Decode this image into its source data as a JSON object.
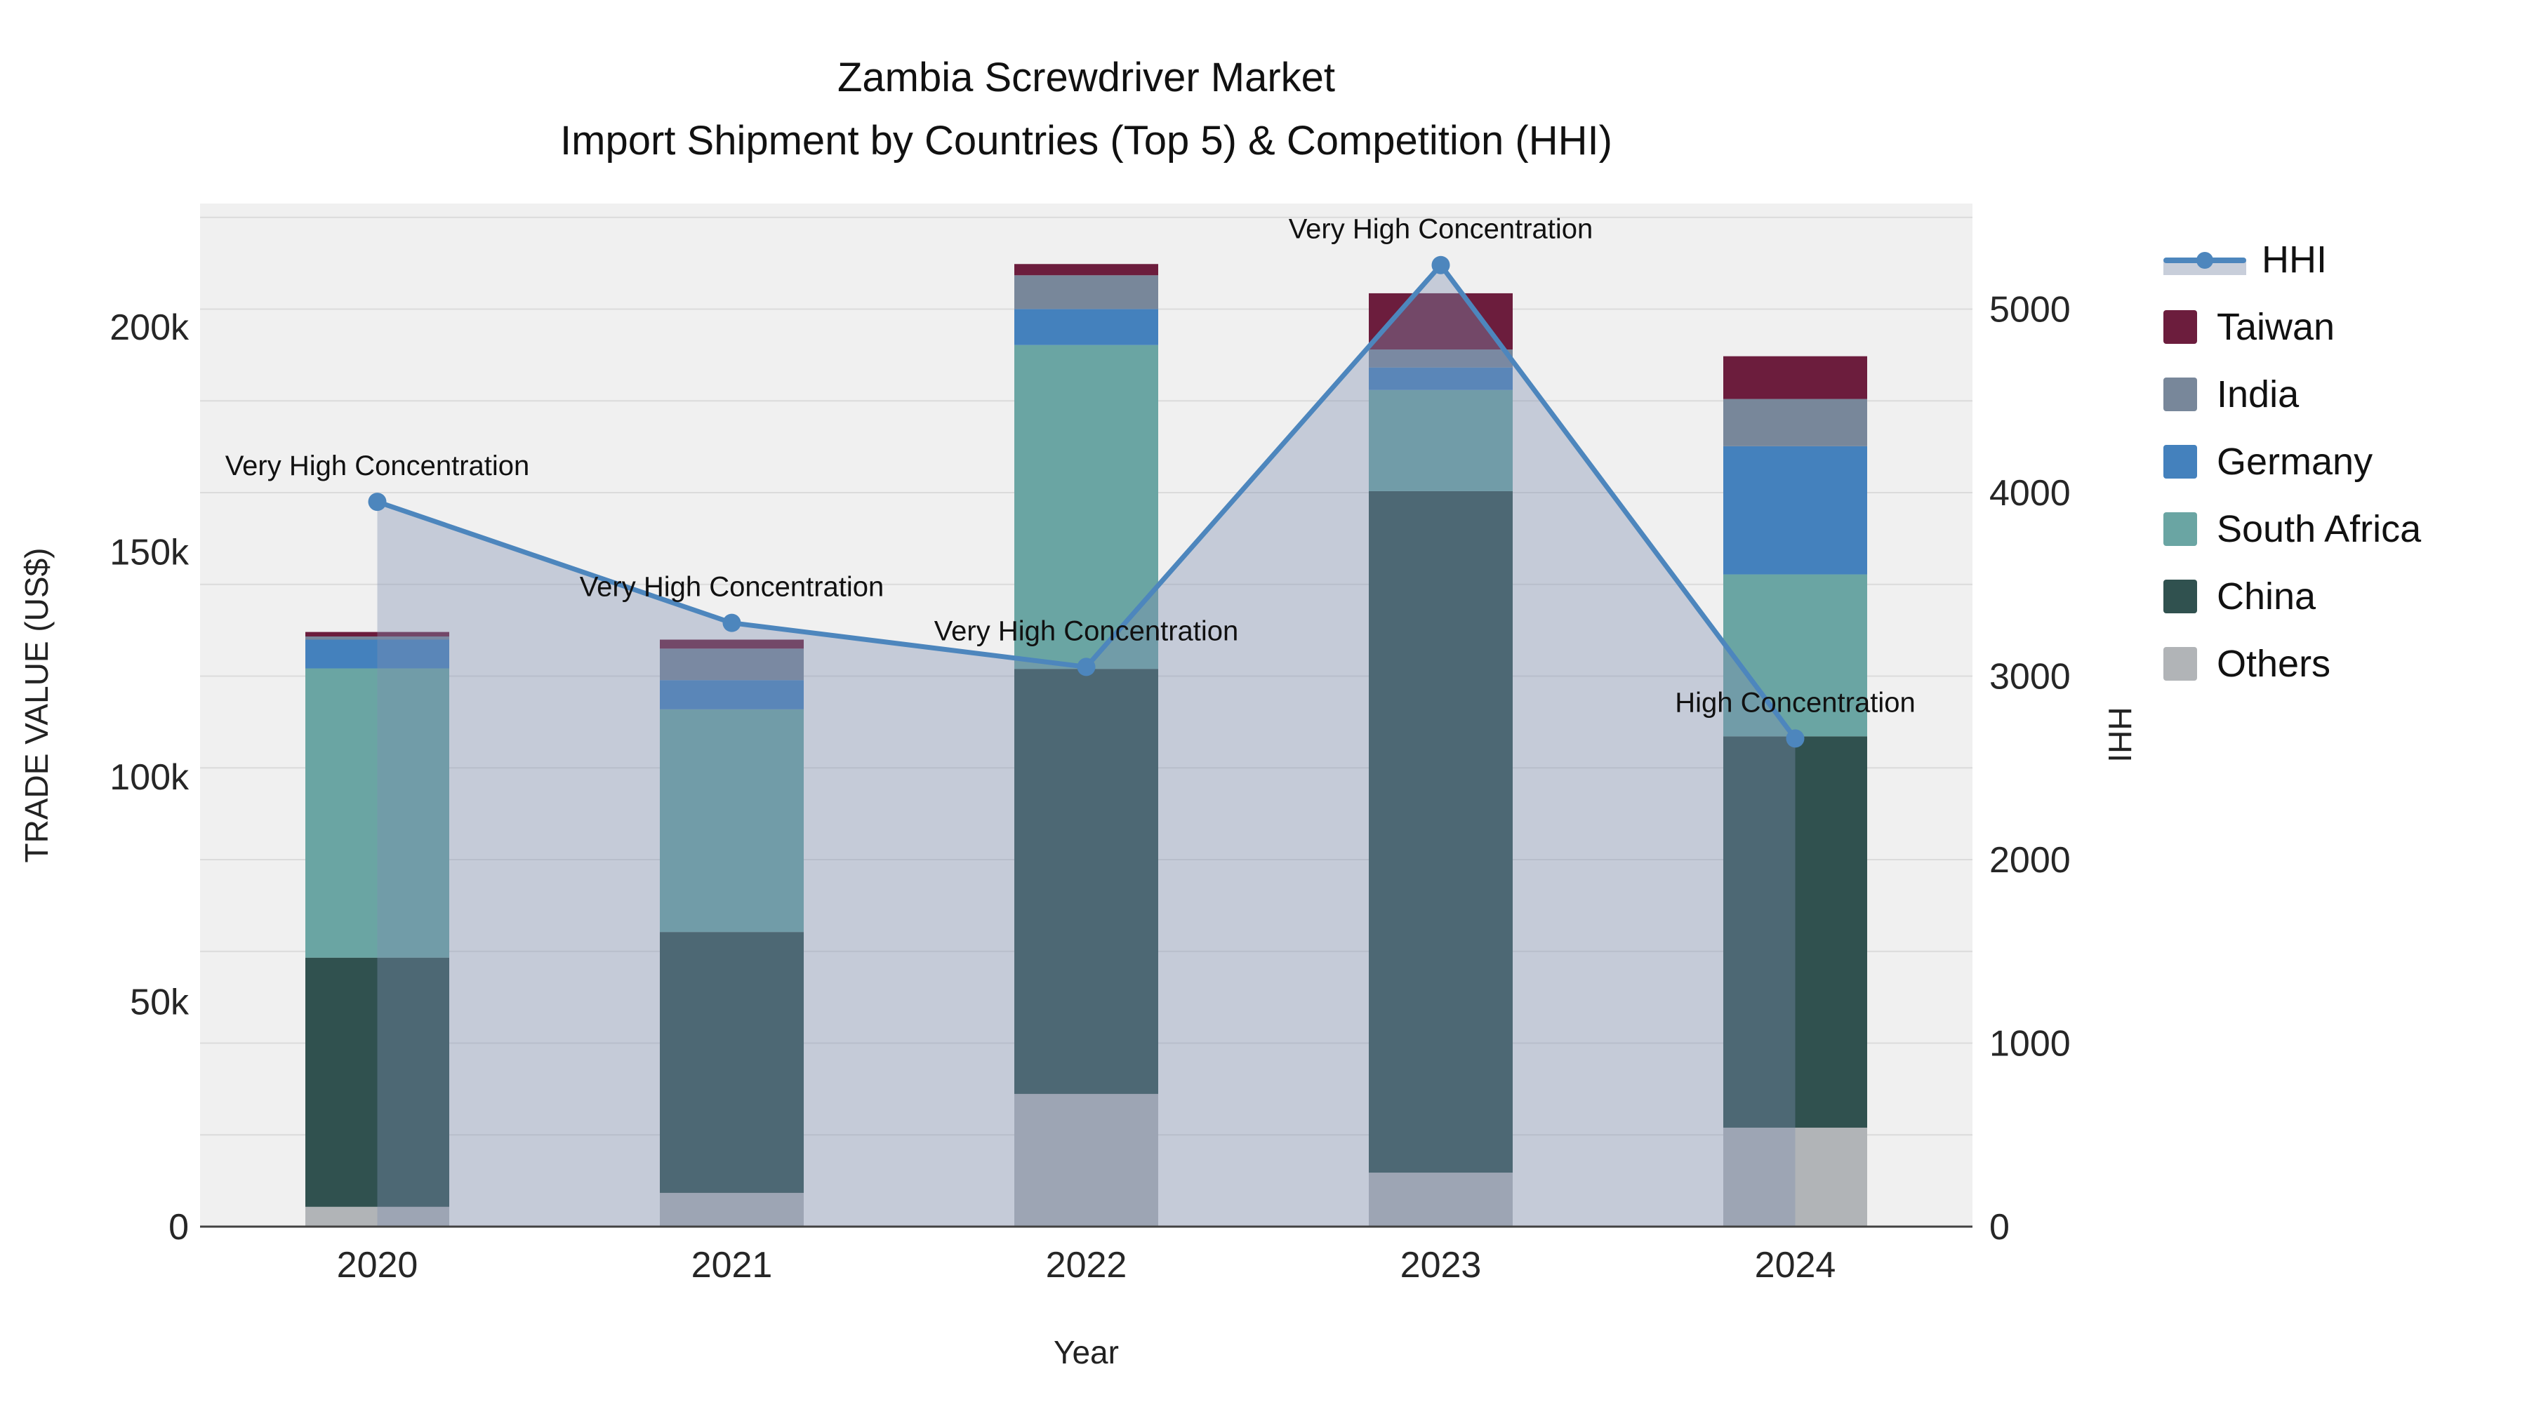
{
  "chart_data": {
    "type": "bar",
    "combo": "stacked-bars-with-line-overlay-and-area-fill",
    "title": "Zambia Screwdriver Market",
    "subtitle": "Import Shipment by Countries (Top 5) & Competition (HHI)",
    "xlabel": "Year",
    "ylabel_left": "TRADE VALUE (US$)",
    "ylabel_right": "HHI",
    "categories": [
      "2020",
      "2021",
      "2022",
      "2023",
      "2024"
    ],
    "stack_order_bottom_to_top": [
      "Others",
      "China",
      "South Africa",
      "Germany",
      "India",
      "Taiwan"
    ],
    "series": [
      {
        "name": "Taiwan",
        "color": "#6c1d3d",
        "values_kusd": [
          1.0,
          2.0,
          2.5,
          12.5,
          9.5
        ]
      },
      {
        "name": "India",
        "color": "#78879a",
        "values_kusd": [
          0.7,
          7.0,
          7.5,
          4.0,
          10.5
        ]
      },
      {
        "name": "Germany",
        "color": "#4481bd",
        "values_kusd": [
          6.4,
          6.5,
          8.0,
          5.0,
          28.5
        ]
      },
      {
        "name": "South Africa",
        "color": "#6aa5a3",
        "values_kusd": [
          64.3,
          49.5,
          72.0,
          22.5,
          36.0
        ]
      },
      {
        "name": "China",
        "color": "#30514f",
        "values_kusd": [
          55.4,
          58.0,
          94.5,
          151.5,
          87.0
        ]
      },
      {
        "name": "Others",
        "color": "#b1b4b7",
        "values_kusd": [
          4.4,
          7.5,
          29.5,
          12.0,
          22.0
        ]
      }
    ],
    "bar_totals_kusd": [
      132.2,
      130.5,
      214.0,
      207.5,
      193.5
    ],
    "hhi_line": {
      "name": "HHI",
      "color": "#4d86bd",
      "area_fill": "rgba(126,143,177,0.38)",
      "values": [
        3950,
        3290,
        3050,
        5240,
        2660
      ]
    },
    "annotations": [
      {
        "category_index": 0,
        "text": "Very High Concentration"
      },
      {
        "category_index": 1,
        "text": "Very High Concentration"
      },
      {
        "category_index": 2,
        "text": "Very High Concentration"
      },
      {
        "category_index": 3,
        "text": "Very High Concentration"
      },
      {
        "category_index": 4,
        "text": "High Concentration"
      }
    ],
    "y_left_axis": {
      "tick_labels": [
        "0",
        "50k",
        "100k",
        "150k",
        "200k"
      ],
      "tick_values_kusd": [
        0,
        50,
        100,
        150,
        200
      ],
      "range_kusd": [
        0,
        227.4
      ]
    },
    "y_right_axis": {
      "tick_labels": [
        "0",
        "1000",
        "2000",
        "3000",
        "4000",
        "5000"
      ],
      "tick_values": [
        0,
        1000,
        2000,
        3000,
        4000,
        5000
      ],
      "range": [
        0,
        5576
      ],
      "grid_step": 500
    },
    "legend_entries": [
      "HHI",
      "Taiwan",
      "India",
      "Germany",
      "South Africa",
      "China",
      "Others"
    ],
    "style": {
      "plot_background": "#f0f0f0",
      "gridline_color": "#dbdbdb",
      "axisline_color": "#424242",
      "text_color": "#111111",
      "tick_color": "#262626"
    }
  }
}
